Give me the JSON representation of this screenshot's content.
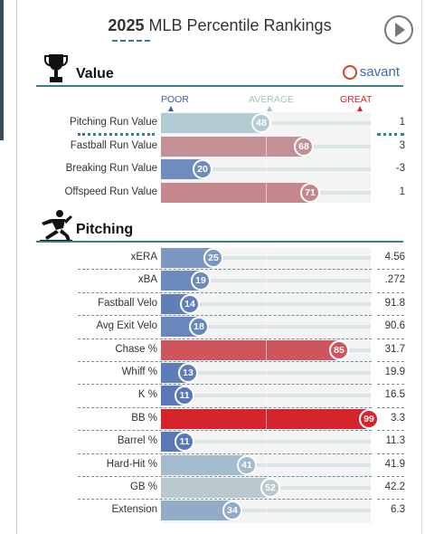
{
  "header": {
    "title_year": "2025",
    "title_rest": " MLB Percentile Rankings",
    "play_icon": "play-circle-icon"
  },
  "value_section": {
    "title": "Value",
    "icon": "trophy-icon",
    "brand": "savant",
    "brand_icon": "baseball-icon",
    "scale": {
      "poor": "POOR",
      "average": "AVERAGE",
      "great": "GREAT"
    },
    "rows": [
      {
        "label": "Pitching Run Value",
        "percentile": 48,
        "value": "1"
      },
      {
        "label": "Fastball Run Value",
        "percentile": 68,
        "value": "3"
      },
      {
        "label": "Breaking Run Value",
        "percentile": 20,
        "value": "-3"
      },
      {
        "label": "Offspeed Run Value",
        "percentile": 71,
        "value": "1"
      }
    ]
  },
  "pitching_section": {
    "title": "Pitching",
    "icon": "pitcher-icon",
    "rows": [
      {
        "label": "xERA",
        "percentile": 25,
        "value": "4.56"
      },
      {
        "label": "xBA",
        "percentile": 19,
        "value": ".272"
      },
      {
        "label": "Fastball Velo",
        "percentile": 14,
        "value": "91.8"
      },
      {
        "label": "Avg Exit Velo",
        "percentile": 18,
        "value": "90.6"
      },
      {
        "label": "Chase %",
        "percentile": 85,
        "value": "31.7"
      },
      {
        "label": "Whiff %",
        "percentile": 13,
        "value": "19.9"
      },
      {
        "label": "K %",
        "percentile": 11,
        "value": "16.5"
      },
      {
        "label": "BB %",
        "percentile": 99,
        "value": "3.3"
      },
      {
        "label": "Barrel %",
        "percentile": 11,
        "value": "11.3"
      },
      {
        "label": "Hard-Hit %",
        "percentile": 41,
        "value": "41.9"
      },
      {
        "label": "GB %",
        "percentile": 52,
        "value": "42.2"
      },
      {
        "label": "Extension",
        "percentile": 34,
        "value": "6.3"
      }
    ]
  },
  "colors": {
    "poor": "#3d5fb0",
    "average": "#b8cfd3",
    "great": "#d82129",
    "accent": "#3b7e88"
  }
}
